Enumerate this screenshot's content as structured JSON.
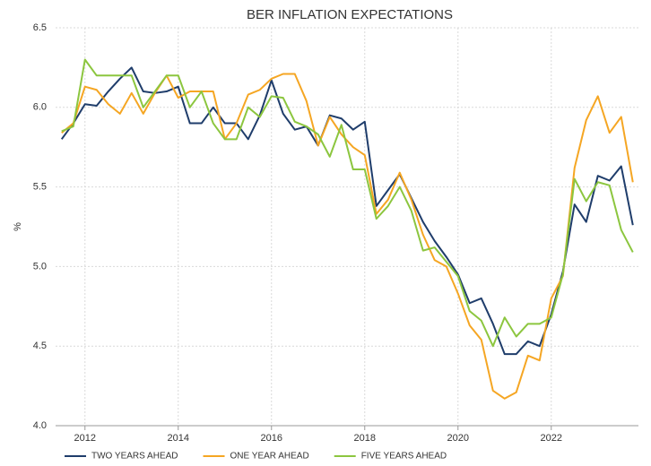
{
  "chart_data": {
    "type": "line",
    "title": "BER INFLATION EXPECTATIONS",
    "y_label": "%",
    "x": [
      2011.5,
      2011.75,
      2012,
      2012.25,
      2012.5,
      2012.75,
      2013,
      2013.25,
      2013.5,
      2013.75,
      2014,
      2014.25,
      2014.5,
      2014.75,
      2015,
      2015.25,
      2015.5,
      2015.75,
      2016,
      2016.25,
      2016.5,
      2016.75,
      2017,
      2017.25,
      2017.5,
      2017.75,
      2018,
      2018.25,
      2018.5,
      2018.75,
      2019,
      2019.25,
      2019.5,
      2019.75,
      2020,
      2020.25,
      2020.5,
      2020.75,
      2021,
      2021.25,
      2021.5,
      2021.75,
      2022,
      2022.25,
      2022.5,
      2022.75,
      2023,
      2023.25,
      2023.5,
      2023.75
    ],
    "series": [
      {
        "name": "TWO YEARS AHEAD",
        "color": "#1f3d6b",
        "values": [
          5.8,
          5.9,
          6.02,
          6.01,
          6.1,
          6.18,
          6.25,
          6.1,
          6.09,
          6.1,
          6.13,
          5.9,
          5.9,
          6.0,
          5.9,
          5.9,
          5.8,
          5.95,
          6.17,
          5.96,
          5.86,
          5.88,
          5.76,
          5.95,
          5.93,
          5.86,
          5.91,
          5.38,
          5.48,
          5.58,
          5.43,
          5.28,
          5.16,
          5.06,
          4.95,
          4.77,
          4.8,
          4.64,
          4.45,
          4.45,
          4.53,
          4.5,
          4.7,
          4.97,
          5.39,
          5.28,
          5.57,
          5.54,
          5.63,
          5.26
        ]
      },
      {
        "name": "ONE YEAR AHEAD",
        "color": "#f5a623",
        "values": [
          5.84,
          5.9,
          6.13,
          6.11,
          6.02,
          5.96,
          6.09,
          5.96,
          6.09,
          6.2,
          6.06,
          6.1,
          6.1,
          6.1,
          5.8,
          5.9,
          6.08,
          6.11,
          6.18,
          6.21,
          6.21,
          6.04,
          5.76,
          5.94,
          5.83,
          5.75,
          5.7,
          5.33,
          5.42,
          5.59,
          5.42,
          5.2,
          5.04,
          5.0,
          4.83,
          4.63,
          4.54,
          4.22,
          4.17,
          4.21,
          4.44,
          4.41,
          4.8,
          4.94,
          5.62,
          5.92,
          6.07,
          5.84,
          5.94,
          5.53
        ]
      },
      {
        "name": "FIVE YEARS AHEAD",
        "color": "#8cc63f",
        "values": [
          5.85,
          5.88,
          6.3,
          6.2,
          6.2,
          6.2,
          6.2,
          6.0,
          6.1,
          6.2,
          6.2,
          6.0,
          6.1,
          5.9,
          5.8,
          5.8,
          6.0,
          5.94,
          6.07,
          6.06,
          5.91,
          5.88,
          5.83,
          5.69,
          5.89,
          5.61,
          5.61,
          5.3,
          5.38,
          5.5,
          5.35,
          5.1,
          5.12,
          5.03,
          4.94,
          4.72,
          4.66,
          4.5,
          4.68,
          4.56,
          4.64,
          4.64,
          4.68,
          4.95,
          5.55,
          5.41,
          5.53,
          5.51,
          5.23,
          5.09
        ]
      }
    ],
    "xlim": [
      2011.37,
      2023.87
    ],
    "xticks": [
      2012,
      2014,
      2016,
      2018,
      2020,
      2022
    ],
    "ylim": [
      4,
      6.5
    ],
    "yticks": [
      {
        "value": 4,
        "label": "4.0"
      },
      4.5,
      {
        "value": 5,
        "label": "5.0"
      },
      5.5,
      {
        "value": 6,
        "label": "6.0"
      },
      6.5
    ],
    "grid": true,
    "legend": "bottom"
  }
}
